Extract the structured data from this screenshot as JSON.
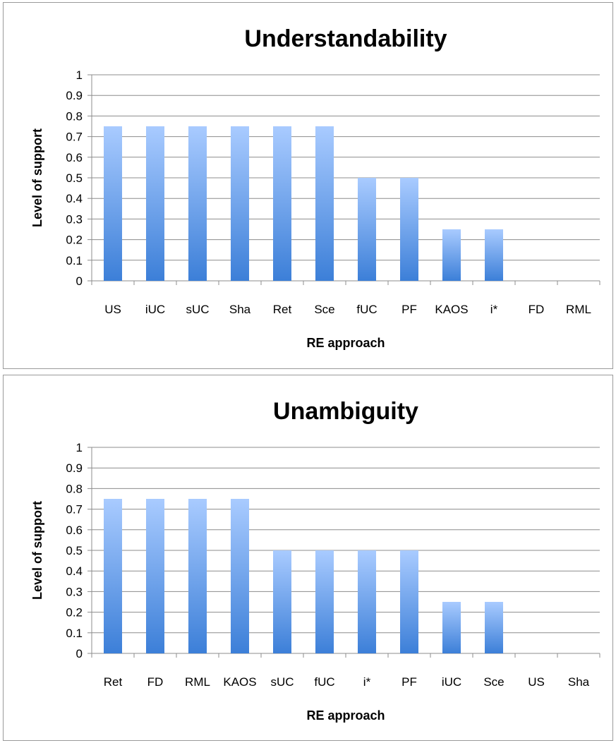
{
  "chart_data": [
    {
      "type": "bar",
      "title": "Understandability",
      "xlabel": "RE approach",
      "ylabel": "Level of support",
      "ylim": [
        0,
        1
      ],
      "yticks": [
        "0",
        "0.1",
        "0.2",
        "0.3",
        "0.4",
        "0.5",
        "0.6",
        "0.7",
        "0.8",
        "0.9",
        "1"
      ],
      "grid": "horizontal",
      "categories": [
        "US",
        "iUC",
        "sUC",
        "Sha",
        "Ret",
        "Sce",
        "fUC",
        "PF",
        "KAOS",
        "i*",
        "FD",
        "RML"
      ],
      "values": [
        0.75,
        0.75,
        0.75,
        0.75,
        0.75,
        0.75,
        0.5,
        0.5,
        0.25,
        0.25,
        0,
        0
      ],
      "bar_color_top": "#a9cbff",
      "bar_color_bottom": "#3c7fd8"
    },
    {
      "type": "bar",
      "title": "Unambiguity",
      "xlabel": "RE approach",
      "ylabel": "Level of support",
      "ylim": [
        0,
        1
      ],
      "yticks": [
        "0",
        "0.1",
        "0.2",
        "0.3",
        "0.4",
        "0.5",
        "0.6",
        "0.7",
        "0.8",
        "0.9",
        "1"
      ],
      "grid": "horizontal",
      "categories": [
        "Ret",
        "FD",
        "RML",
        "KAOS",
        "sUC",
        "fUC",
        "i*",
        "PF",
        "iUC",
        "Sce",
        "US",
        "Sha"
      ],
      "values": [
        0.75,
        0.75,
        0.75,
        0.75,
        0.5,
        0.5,
        0.5,
        0.5,
        0.25,
        0.25,
        0,
        0
      ],
      "bar_color_top": "#a9cbff",
      "bar_color_bottom": "#3c7fd8"
    }
  ]
}
